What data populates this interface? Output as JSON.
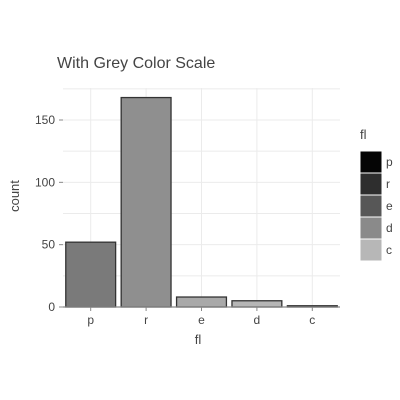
{
  "chart_data": {
    "type": "bar",
    "title": "With Grey Color Scale",
    "xlabel": "fl",
    "ylabel": "count",
    "categories": [
      "p",
      "r",
      "e",
      "d",
      "c"
    ],
    "values": [
      52,
      168,
      8,
      5,
      1
    ],
    "bar_colors": [
      "#7a7a7a",
      "#8f8f8f",
      "#a9a9a9",
      "#b6b6b6",
      "#c4c4c4"
    ],
    "bar_stroke": "#333333",
    "ylim": [
      0,
      175
    ],
    "yticks": [
      0,
      50,
      100,
      150
    ],
    "grid": true,
    "legend": {
      "title": "fl",
      "position": "right",
      "entries": [
        {
          "label": "p",
          "color": "#050505"
        },
        {
          "label": "r",
          "color": "#2e2e2e"
        },
        {
          "label": "e",
          "color": "#575757"
        },
        {
          "label": "d",
          "color": "#8a8a8a"
        },
        {
          "label": "c",
          "color": "#b7b7b7"
        }
      ]
    }
  }
}
